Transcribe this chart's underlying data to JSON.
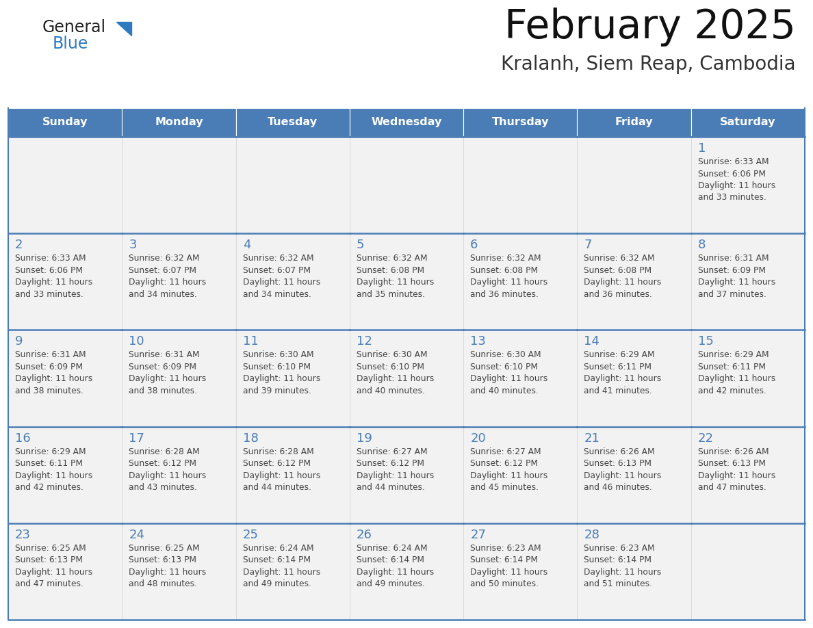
{
  "title": "February 2025",
  "subtitle": "Kralanh, Siem Reap, Cambodia",
  "days_of_week": [
    "Sunday",
    "Monday",
    "Tuesday",
    "Wednesday",
    "Thursday",
    "Friday",
    "Saturday"
  ],
  "header_bg": "#4a7db5",
  "header_text": "#ffffff",
  "cell_bg": "#f2f2f2",
  "border_color": "#4a7db5",
  "day_number_color": "#4a7db5",
  "text_color": "#444444",
  "logo_general_color": "#222222",
  "logo_blue_color": "#2e7abf",
  "calendar": [
    [
      {
        "day": null,
        "sunrise": null,
        "sunset": null,
        "daylight_h": null,
        "daylight_m": null
      },
      {
        "day": null,
        "sunrise": null,
        "sunset": null,
        "daylight_h": null,
        "daylight_m": null
      },
      {
        "day": null,
        "sunrise": null,
        "sunset": null,
        "daylight_h": null,
        "daylight_m": null
      },
      {
        "day": null,
        "sunrise": null,
        "sunset": null,
        "daylight_h": null,
        "daylight_m": null
      },
      {
        "day": null,
        "sunrise": null,
        "sunset": null,
        "daylight_h": null,
        "daylight_m": null
      },
      {
        "day": null,
        "sunrise": null,
        "sunset": null,
        "daylight_h": null,
        "daylight_m": null
      },
      {
        "day": 1,
        "sunrise": "6:33 AM",
        "sunset": "6:06 PM",
        "daylight_h": "11 hours",
        "daylight_m": "33 minutes."
      }
    ],
    [
      {
        "day": 2,
        "sunrise": "6:33 AM",
        "sunset": "6:06 PM",
        "daylight_h": "11 hours",
        "daylight_m": "33 minutes."
      },
      {
        "day": 3,
        "sunrise": "6:32 AM",
        "sunset": "6:07 PM",
        "daylight_h": "11 hours",
        "daylight_m": "34 minutes."
      },
      {
        "day": 4,
        "sunrise": "6:32 AM",
        "sunset": "6:07 PM",
        "daylight_h": "11 hours",
        "daylight_m": "34 minutes."
      },
      {
        "day": 5,
        "sunrise": "6:32 AM",
        "sunset": "6:08 PM",
        "daylight_h": "11 hours",
        "daylight_m": "35 minutes."
      },
      {
        "day": 6,
        "sunrise": "6:32 AM",
        "sunset": "6:08 PM",
        "daylight_h": "11 hours",
        "daylight_m": "36 minutes."
      },
      {
        "day": 7,
        "sunrise": "6:32 AM",
        "sunset": "6:08 PM",
        "daylight_h": "11 hours",
        "daylight_m": "36 minutes."
      },
      {
        "day": 8,
        "sunrise": "6:31 AM",
        "sunset": "6:09 PM",
        "daylight_h": "11 hours",
        "daylight_m": "37 minutes."
      }
    ],
    [
      {
        "day": 9,
        "sunrise": "6:31 AM",
        "sunset": "6:09 PM",
        "daylight_h": "11 hours",
        "daylight_m": "38 minutes."
      },
      {
        "day": 10,
        "sunrise": "6:31 AM",
        "sunset": "6:09 PM",
        "daylight_h": "11 hours",
        "daylight_m": "38 minutes."
      },
      {
        "day": 11,
        "sunrise": "6:30 AM",
        "sunset": "6:10 PM",
        "daylight_h": "11 hours",
        "daylight_m": "39 minutes."
      },
      {
        "day": 12,
        "sunrise": "6:30 AM",
        "sunset": "6:10 PM",
        "daylight_h": "11 hours",
        "daylight_m": "40 minutes."
      },
      {
        "day": 13,
        "sunrise": "6:30 AM",
        "sunset": "6:10 PM",
        "daylight_h": "11 hours",
        "daylight_m": "40 minutes."
      },
      {
        "day": 14,
        "sunrise": "6:29 AM",
        "sunset": "6:11 PM",
        "daylight_h": "11 hours",
        "daylight_m": "41 minutes."
      },
      {
        "day": 15,
        "sunrise": "6:29 AM",
        "sunset": "6:11 PM",
        "daylight_h": "11 hours",
        "daylight_m": "42 minutes."
      }
    ],
    [
      {
        "day": 16,
        "sunrise": "6:29 AM",
        "sunset": "6:11 PM",
        "daylight_h": "11 hours",
        "daylight_m": "42 minutes."
      },
      {
        "day": 17,
        "sunrise": "6:28 AM",
        "sunset": "6:12 PM",
        "daylight_h": "11 hours",
        "daylight_m": "43 minutes."
      },
      {
        "day": 18,
        "sunrise": "6:28 AM",
        "sunset": "6:12 PM",
        "daylight_h": "11 hours",
        "daylight_m": "44 minutes."
      },
      {
        "day": 19,
        "sunrise": "6:27 AM",
        "sunset": "6:12 PM",
        "daylight_h": "11 hours",
        "daylight_m": "44 minutes."
      },
      {
        "day": 20,
        "sunrise": "6:27 AM",
        "sunset": "6:12 PM",
        "daylight_h": "11 hours",
        "daylight_m": "45 minutes."
      },
      {
        "day": 21,
        "sunrise": "6:26 AM",
        "sunset": "6:13 PM",
        "daylight_h": "11 hours",
        "daylight_m": "46 minutes."
      },
      {
        "day": 22,
        "sunrise": "6:26 AM",
        "sunset": "6:13 PM",
        "daylight_h": "11 hours",
        "daylight_m": "47 minutes."
      }
    ],
    [
      {
        "day": 23,
        "sunrise": "6:25 AM",
        "sunset": "6:13 PM",
        "daylight_h": "11 hours",
        "daylight_m": "47 minutes."
      },
      {
        "day": 24,
        "sunrise": "6:25 AM",
        "sunset": "6:13 PM",
        "daylight_h": "11 hours",
        "daylight_m": "48 minutes."
      },
      {
        "day": 25,
        "sunrise": "6:24 AM",
        "sunset": "6:14 PM",
        "daylight_h": "11 hours",
        "daylight_m": "49 minutes."
      },
      {
        "day": 26,
        "sunrise": "6:24 AM",
        "sunset": "6:14 PM",
        "daylight_h": "11 hours",
        "daylight_m": "49 minutes."
      },
      {
        "day": 27,
        "sunrise": "6:23 AM",
        "sunset": "6:14 PM",
        "daylight_h": "11 hours",
        "daylight_m": "50 minutes."
      },
      {
        "day": 28,
        "sunrise": "6:23 AM",
        "sunset": "6:14 PM",
        "daylight_h": "11 hours",
        "daylight_m": "51 minutes."
      },
      {
        "day": null,
        "sunrise": null,
        "sunset": null,
        "daylight_h": null,
        "daylight_m": null
      }
    ]
  ]
}
